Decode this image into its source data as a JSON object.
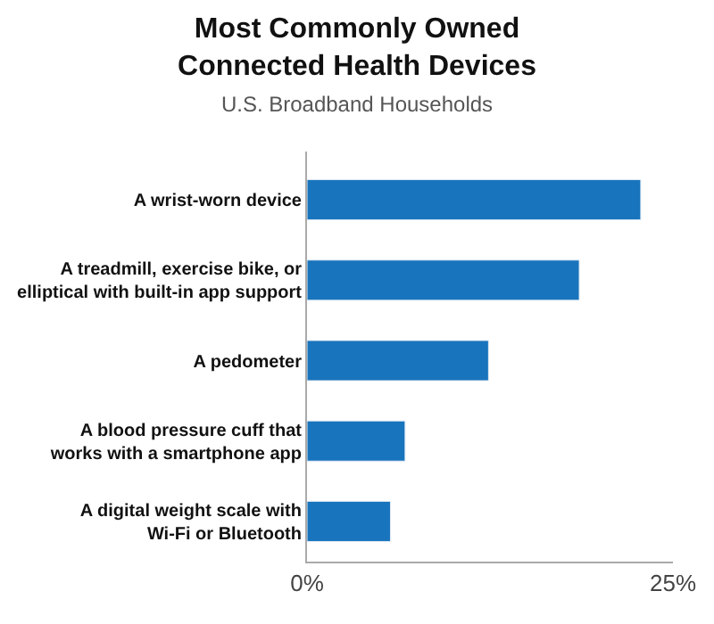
{
  "chart_data": {
    "type": "bar",
    "orientation": "horizontal",
    "title": "Most Commonly Owned\nConnected Health Devices",
    "subtitle": "U.S. Broadband Households",
    "categories": [
      "A wrist-worn device",
      "A treadmill, exercise bike, or\nelliptical with built-in app support",
      "A pedometer",
      "A blood pressure cuff that\nworks with a smartphone app",
      "A digital weight scale with\nWi-Fi or Bluetooth"
    ],
    "values": [
      22.8,
      18.6,
      12.4,
      6.7,
      5.7
    ],
    "color": "#1874bc",
    "xlim": [
      0,
      25
    ],
    "xticks": [
      {
        "value": 0,
        "label": "0%"
      },
      {
        "value": 25,
        "label": "25%"
      }
    ],
    "legend": false
  }
}
